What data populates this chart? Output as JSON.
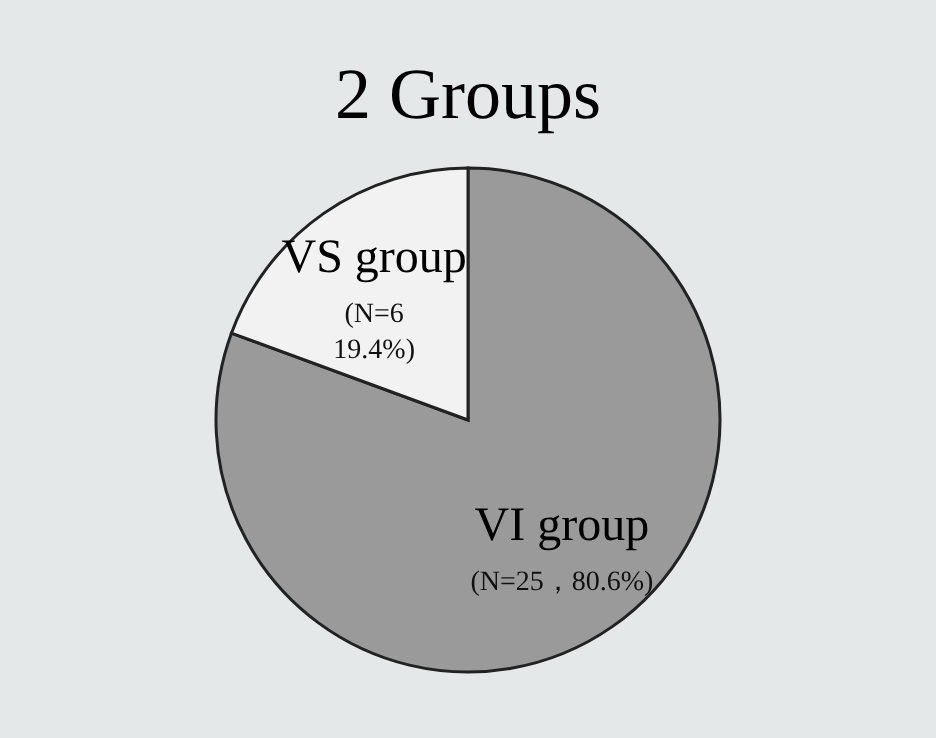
{
  "chart_data": {
    "type": "pie",
    "title": "2 Groups",
    "categories": [
      "VI group",
      "VS group"
    ],
    "values": [
      80.6,
      19.4
    ],
    "colors": [
      "#9a9a9a",
      "#f2f2f2"
    ],
    "value_labels": [
      "(N=25，80.6%)",
      "(N=6\n19.4%)"
    ]
  }
}
